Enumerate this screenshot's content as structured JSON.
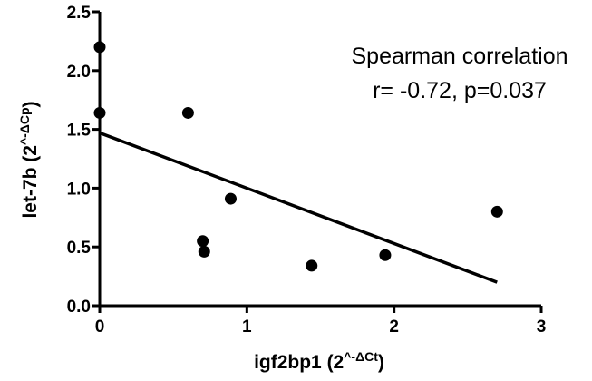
{
  "chart_data": {
    "type": "scatter",
    "title": "",
    "xlabel": {
      "main": "igf2bp1 (2",
      "sup": "^-ΔCt",
      "close": ")"
    },
    "ylabel": {
      "main": "let-7b (2",
      "sup": "^-ΔCp",
      "close": ")"
    },
    "xlim": [
      0,
      3
    ],
    "ylim": [
      0,
      2.5
    ],
    "x_ticks": [
      0,
      1,
      2,
      3
    ],
    "x_tick_labels": [
      "0",
      "1",
      "2",
      "3"
    ],
    "y_ticks": [
      0,
      0.5,
      1.0,
      1.5,
      2.0,
      2.5
    ],
    "y_tick_labels": [
      "0.0",
      "0.5",
      "1.0",
      "1.5",
      "2.0",
      "2.5"
    ],
    "points": [
      {
        "x": 0.0,
        "y": 2.2
      },
      {
        "x": 0.0,
        "y": 1.64
      },
      {
        "x": 0.6,
        "y": 1.64
      },
      {
        "x": 0.7,
        "y": 0.55
      },
      {
        "x": 0.71,
        "y": 0.46
      },
      {
        "x": 0.89,
        "y": 0.91
      },
      {
        "x": 1.44,
        "y": 0.34
      },
      {
        "x": 1.94,
        "y": 0.43
      },
      {
        "x": 2.7,
        "y": 0.8
      }
    ],
    "regression_line": {
      "x": [
        0,
        2.7
      ],
      "y": [
        1.47,
        0.2
      ]
    },
    "annotation": {
      "line1": "Spearman correlation",
      "line2": "r= -0.72, p=0.037"
    },
    "grid": false,
    "legend": "none"
  }
}
